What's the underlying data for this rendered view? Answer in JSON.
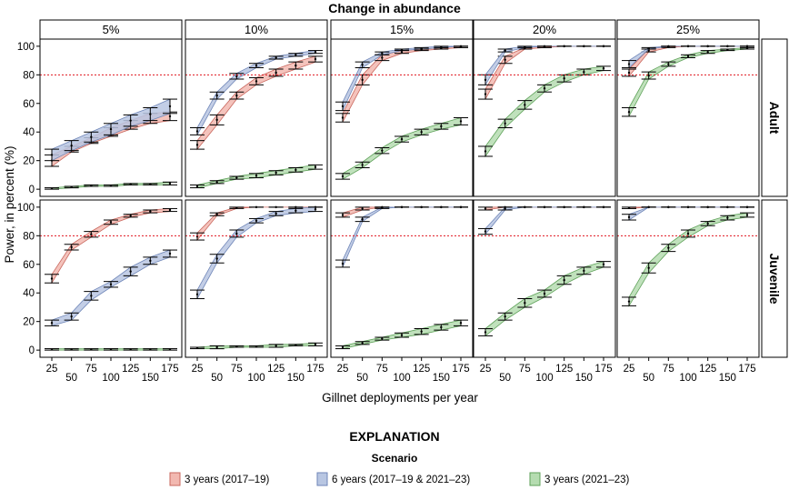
{
  "chart_data": {
    "type": "line",
    "title": "Change in abundance",
    "xlabel": "Gillnet deployments per year",
    "ylabel": "Power, in percent (%)",
    "x": [
      25,
      50,
      75,
      100,
      125,
      150,
      175
    ],
    "xticks": [
      "25",
      "50",
      "75",
      "100",
      "125",
      "150",
      "175"
    ],
    "yticks": [
      "0",
      "20",
      "40",
      "60",
      "80",
      "100"
    ],
    "ylim": [
      -5,
      105
    ],
    "threshold": 80,
    "columns": [
      "5%",
      "10%",
      "15%",
      "20%",
      "25%"
    ],
    "rows": [
      "Adult",
      "Juvenile"
    ],
    "legend_title": "EXPLANATION",
    "legend_subtitle": "Scenario",
    "series": [
      {
        "name": "3 years (2017–19)",
        "color": "#f2b8b0",
        "stroke": "#c9675e"
      },
      {
        "name": "6 years (2017–19 & 2021–23)",
        "color": "#b8c6e2",
        "stroke": "#6f86b8"
      },
      {
        "name": "3 years (2021–23)",
        "color": "#b5dcb0",
        "stroke": "#5fa25a"
      }
    ],
    "panels": [
      {
        "row": "Adult",
        "col": "5%",
        "series": [
          {
            "low": [
              16,
              26,
              32,
              37,
              42,
              46,
              48
            ],
            "high": [
              24,
              30,
              36,
              43,
              48,
              53,
              54
            ]
          },
          {
            "low": [
              20,
              27,
              33,
              38,
              44,
              48,
              53
            ],
            "high": [
              28,
              34,
              40,
              46,
              52,
              57,
              63
            ]
          },
          {
            "low": [
              0,
              1,
              2,
              2,
              3,
              3,
              3
            ],
            "high": [
              1,
              2,
              3,
              3,
              4,
              4,
              5
            ]
          }
        ]
      },
      {
        "row": "Adult",
        "col": "10%",
        "series": [
          {
            "low": [
              28,
              45,
              63,
              73,
              79,
              84,
              89
            ],
            "high": [
              34,
              52,
              68,
              78,
              84,
              89,
              93
            ]
          },
          {
            "low": [
              38,
              63,
              77,
              85,
              91,
              93,
              95
            ],
            "high": [
              43,
              68,
              81,
              88,
              93,
              95,
              97
            ]
          },
          {
            "low": [
              1,
              4,
              7,
              8,
              10,
              12,
              14
            ],
            "high": [
              3,
              6,
              9,
              11,
              13,
              15,
              17
            ]
          }
        ]
      },
      {
        "row": "Adult",
        "col": "15%",
        "series": [
          {
            "low": [
              47,
              73,
              90,
              95,
              97,
              98,
              99
            ],
            "high": [
              53,
              80,
              94,
              97,
              98,
              99,
              100
            ]
          },
          {
            "low": [
              55,
              85,
              94,
              97,
              98,
              99,
              100
            ],
            "high": [
              61,
              89,
              96,
              98,
              99,
              100,
              100
            ]
          },
          {
            "low": [
              7,
              15,
              25,
              33,
              38,
              42,
              45
            ],
            "high": [
              11,
              19,
              29,
              37,
              42,
              46,
              50
            ]
          }
        ]
      },
      {
        "row": "Adult",
        "col": "20%",
        "series": [
          {
            "low": [
              63,
              88,
              98,
              99,
              100,
              100,
              100
            ],
            "high": [
              70,
              93,
              99,
              100,
              100,
              100,
              100
            ]
          },
          {
            "low": [
              73,
              96,
              99,
              100,
              100,
              100,
              100
            ],
            "high": [
              80,
              98,
              100,
              100,
              100,
              100,
              100
            ]
          },
          {
            "low": [
              23,
              43,
              56,
              68,
              75,
              80,
              83
            ],
            "high": [
              30,
              49,
              62,
              73,
              80,
              84,
              86
            ]
          }
        ]
      },
      {
        "row": "Adult",
        "col": "25%",
        "series": [
          {
            "low": [
              79,
              96,
              99,
              100,
              100,
              100,
              100
            ],
            "high": [
              84,
              98,
              100,
              100,
              100,
              100,
              100
            ]
          },
          {
            "low": [
              85,
              98,
              100,
              100,
              100,
              100,
              100
            ],
            "high": [
              90,
              99,
              100,
              100,
              100,
              100,
              100
            ]
          },
          {
            "low": [
              51,
              77,
              86,
              92,
              95,
              97,
              98
            ],
            "high": [
              57,
              82,
              89,
              94,
              97,
              98,
              99
            ]
          }
        ]
      },
      {
        "row": "Juvenile",
        "col": "5%",
        "series": [
          {
            "low": [
              47,
              70,
              79,
              88,
              93,
              96,
              97
            ],
            "high": [
              53,
              74,
              83,
              91,
              95,
              98,
              99
            ]
          },
          {
            "low": [
              17,
              21,
              35,
              44,
              52,
              60,
              65
            ],
            "high": [
              21,
              26,
              41,
              48,
              58,
              65,
              70
            ]
          },
          {
            "low": [
              0,
              0,
              0,
              0,
              0,
              0,
              0
            ],
            "high": [
              1,
              1,
              1,
              1,
              1,
              1,
              1
            ]
          }
        ]
      },
      {
        "row": "Juvenile",
        "col": "10%",
        "series": [
          {
            "low": [
              77,
              94,
              99,
              100,
              100,
              100,
              100
            ],
            "high": [
              82,
              96,
              100,
              100,
              100,
              100,
              100
            ]
          },
          {
            "low": [
              36,
              61,
              79,
              89,
              94,
              96,
              97
            ],
            "high": [
              42,
              67,
              84,
              92,
              97,
              99,
              100
            ]
          },
          {
            "low": [
              1,
              1,
              2,
              2,
              2,
              3,
              3
            ],
            "high": [
              2,
              3,
              3,
              3,
              4,
              4,
              5
            ]
          }
        ]
      },
      {
        "row": "Juvenile",
        "col": "15%",
        "series": [
          {
            "low": [
              93,
              98,
              100,
              100,
              100,
              100,
              100
            ],
            "high": [
              96,
              100,
              100,
              100,
              100,
              100,
              100
            ]
          },
          {
            "low": [
              58,
              90,
              99,
              100,
              100,
              100,
              100
            ],
            "high": [
              63,
              93,
              100,
              100,
              100,
              100,
              100
            ]
          },
          {
            "low": [
              1,
              4,
              7,
              9,
              11,
              14,
              17
            ],
            "high": [
              3,
              6,
              9,
              12,
              15,
              18,
              21
            ]
          }
        ]
      },
      {
        "row": "Juvenile",
        "col": "20%",
        "series": [
          {
            "low": [
              98,
              100,
              100,
              100,
              100,
              100,
              100
            ],
            "high": [
              100,
              100,
              100,
              100,
              100,
              100,
              100
            ]
          },
          {
            "low": [
              81,
              98,
              100,
              100,
              100,
              100,
              100
            ],
            "high": [
              85,
              100,
              100,
              100,
              100,
              100,
              100
            ]
          },
          {
            "low": [
              10,
              21,
              30,
              37,
              46,
              53,
              58
            ],
            "high": [
              15,
              26,
              36,
              42,
              52,
              58,
              62
            ]
          }
        ]
      },
      {
        "row": "Juvenile",
        "col": "25%",
        "series": [
          {
            "low": [
              99,
              100,
              100,
              100,
              100,
              100,
              100
            ],
            "high": [
              100,
              100,
              100,
              100,
              100,
              100,
              100
            ]
          },
          {
            "low": [
              91,
              100,
              100,
              100,
              100,
              100,
              100
            ],
            "high": [
              95,
              100,
              100,
              100,
              100,
              100,
              100
            ]
          },
          {
            "low": [
              31,
              54,
              69,
              79,
              87,
              91,
              93
            ],
            "high": [
              37,
              61,
              74,
              84,
              90,
              94,
              96
            ]
          }
        ]
      }
    ]
  }
}
